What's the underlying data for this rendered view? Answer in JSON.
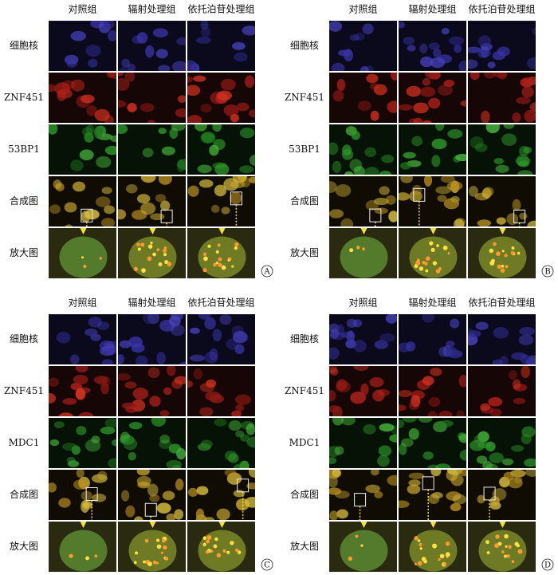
{
  "panels": [
    {
      "label": "A",
      "columns": [
        "对照组",
        "辐射处理组",
        "依托泊苷处理组"
      ],
      "rows": [
        "细胞核",
        "ZNF451",
        "53BP1",
        "合成图",
        "放大图"
      ]
    },
    {
      "label": "B",
      "columns": [
        "对照组",
        "辐射处理组",
        "依托泊苷处理组"
      ],
      "rows": [
        "细胞核",
        "ZNF451",
        "53BP1",
        "合成图",
        "放大图"
      ]
    },
    {
      "label": "C",
      "columns": [
        "对照组",
        "辐射处理组",
        "依托泊苷处理组"
      ],
      "rows": [
        "细胞核",
        "ZNF451",
        "MDC1",
        "合成图",
        "放大图"
      ]
    },
    {
      "label": "D",
      "columns": [
        "对照组",
        "辐射处理组",
        "依托泊苷处理组"
      ],
      "rows": [
        "细胞核",
        "ZNF451",
        "MDC1",
        "合成图",
        "放大图"
      ]
    }
  ]
}
